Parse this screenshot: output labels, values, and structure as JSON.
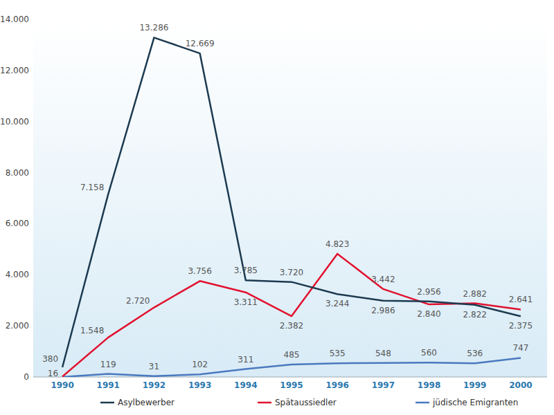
{
  "chart_data": {
    "type": "line",
    "categories": [
      "1990",
      "1991",
      "1992",
      "1993",
      "1994",
      "1995",
      "1996",
      "1997",
      "1998",
      "1999",
      "2000"
    ],
    "series": [
      {
        "name": "Asylbewerber",
        "color": "#1c3a50",
        "values": [
          380,
          7158,
          13286,
          12669,
          3785,
          3720,
          3244,
          2986,
          2956,
          2822,
          2375
        ],
        "value_labels": [
          "380",
          "7.158",
          "13.286",
          "12.669",
          "3.785",
          "3.720",
          "3.244",
          "2.986",
          "2.956",
          "2.822",
          "2.375"
        ]
      },
      {
        "name": "Spätaussiedler",
        "color": "#e2112e",
        "values": [
          16,
          1548,
          2720,
          3756,
          3311,
          2382,
          4823,
          3442,
          2840,
          2882,
          2641
        ],
        "value_labels": [
          "16",
          "1.548",
          "2.720",
          "3.756",
          "3.311",
          "2.382",
          "4.823",
          "3.442",
          "2.840",
          "2.882",
          "2.641"
        ]
      },
      {
        "name": "jüdische Emigranten",
        "color": "#4a79bf",
        "values": [
          0,
          119,
          31,
          102,
          311,
          485,
          535,
          548,
          560,
          536,
          747
        ],
        "value_labels": [
          null,
          "119",
          "31",
          "102",
          "311",
          "485",
          "535",
          "548",
          "560",
          "536",
          "747"
        ]
      }
    ],
    "ylim": [
      0,
      14000
    ],
    "yticks": [
      0,
      {
        "value": 2000,
        "label": "2.000"
      },
      {
        "value": 4000,
        "label": "4.000"
      },
      {
        "value": 6000,
        "label": "6.000"
      },
      {
        "value": 8000,
        "label": "8.000"
      },
      {
        "value": 10000,
        "label": "10.000"
      },
      {
        "value": 12000,
        "label": "12.000"
      },
      {
        "value": 14000,
        "label": "14.000"
      }
    ],
    "grid": false,
    "legend": "bottom",
    "data_labels": true
  }
}
